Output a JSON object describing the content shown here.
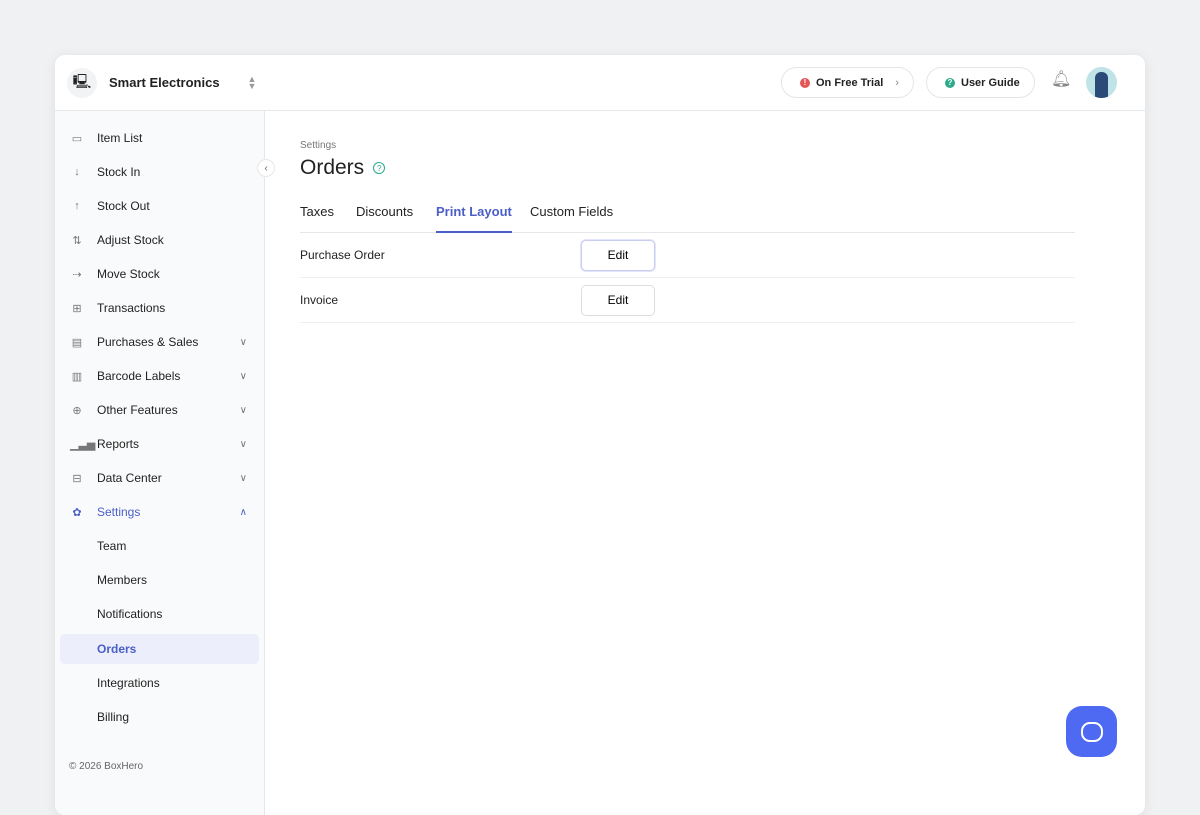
{
  "header": {
    "org_name": "Smart Electronics",
    "trial_label": "On Free Trial",
    "guide_label": "User Guide",
    "colors": {
      "trial": "#e45555",
      "guide": "#2bab8c"
    }
  },
  "sidebar": {
    "items": [
      {
        "label": "Item List",
        "icon": "box-icon"
      },
      {
        "label": "Stock In",
        "icon": "arrow-down-icon"
      },
      {
        "label": "Stock Out",
        "icon": "arrow-up-icon"
      },
      {
        "label": "Adjust Stock",
        "icon": "up-down-arrows-icon"
      },
      {
        "label": "Move Stock",
        "icon": "arrow-right-icon"
      },
      {
        "label": "Transactions",
        "icon": "transactions-icon"
      },
      {
        "label": "Purchases & Sales",
        "icon": "document-icon"
      },
      {
        "label": "Barcode Labels",
        "icon": "barcode-icon"
      },
      {
        "label": "Other Features",
        "icon": "plus-circle-icon"
      },
      {
        "label": "Reports",
        "icon": "bar-chart-icon"
      },
      {
        "label": "Data Center",
        "icon": "database-icon"
      },
      {
        "label": "Settings",
        "icon": "gear-icon"
      }
    ],
    "sub_items": [
      "Team",
      "Members",
      "Notifications",
      "Orders",
      "Integrations",
      "Billing"
    ],
    "footer": "© 2026 BoxHero"
  },
  "main": {
    "breadcrumb": "Settings",
    "title": "Orders",
    "tabs": [
      "Taxes",
      "Discounts",
      "Print Layout",
      "Custom Fields"
    ],
    "active_tab": "Print Layout",
    "rows": [
      {
        "label": "Purchase Order",
        "button": "Edit"
      },
      {
        "label": "Invoice",
        "button": "Edit"
      }
    ]
  },
  "accent": "#4a5fc7"
}
